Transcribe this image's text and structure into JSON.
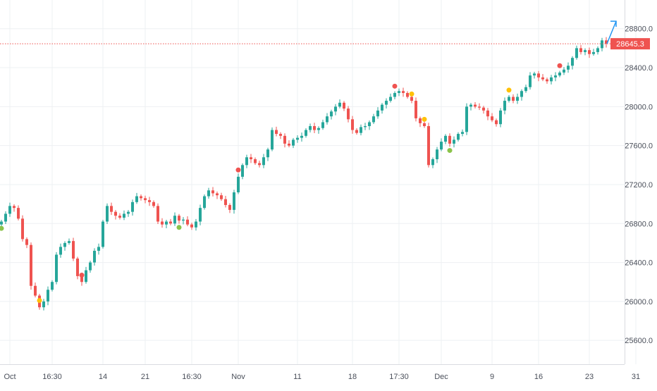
{
  "chart_data": {
    "type": "candlestick",
    "title": "",
    "xlabel": "",
    "ylabel": "",
    "ylim": [
      25500,
      28950
    ],
    "y_ticks": [
      25600,
      26000,
      26400,
      26800,
      27200,
      27600,
      28000,
      28400,
      28800
    ],
    "y_tick_labels": [
      "25600.0",
      "26000.0",
      "26400.0",
      "26800.0",
      "27200.0",
      "27600.0",
      "28000.0",
      "28400.0",
      "28800.0"
    ],
    "x_tick_labels": [
      "Oct",
      "16:30",
      "14",
      "21",
      "16:30",
      "Nov",
      "11",
      "18",
      "17:30",
      "Dec",
      "9",
      "16",
      "23",
      "31"
    ],
    "x_tick_index": [
      2,
      12,
      24,
      34,
      45,
      56,
      70,
      83,
      94,
      104,
      116,
      127,
      139,
      150
    ],
    "grid": true,
    "current_price": 28645.3,
    "current_price_label": "28645.3",
    "colors": {
      "up": "#26a69a",
      "down": "#ef5350",
      "price_line": "#ef5350",
      "arrow": "#2196f3",
      "grid": "#eef0f3",
      "axis_text": "#4a4f5a"
    },
    "series": [
      {
        "close": [
          26820,
          26900,
          26980,
          26960,
          26850,
          26640,
          26580,
          26160,
          26060,
          25940,
          26000,
          26120,
          26200,
          26480,
          26560,
          26600,
          26620,
          26440,
          26260,
          26200,
          26320,
          26400,
          26520,
          26560,
          26820,
          26980,
          26920,
          26880,
          26860,
          26900,
          26920,
          27020,
          27080,
          27060,
          27040,
          27020,
          26980,
          26820,
          26790,
          26820,
          26800,
          26880,
          26830,
          26840,
          26790,
          26760,
          26820,
          26960,
          27080,
          27140,
          27110,
          27090,
          27050,
          26990,
          26940,
          27120,
          27280,
          27400,
          27480,
          27460,
          27420,
          27400,
          27480,
          27560,
          27760,
          27720,
          27700,
          27620,
          27600,
          27660,
          27680,
          27700,
          27760,
          27800,
          27760,
          27780,
          27840,
          27900,
          27950,
          28000,
          28040,
          27980,
          27870,
          27760,
          27730,
          27790,
          27800,
          27840,
          27900,
          27960,
          28020,
          28060,
          28100,
          28140,
          28160,
          28140,
          28100,
          28060,
          27880,
          27830,
          27800,
          27400,
          27460,
          27560,
          27640,
          27700,
          27620,
          27660,
          27720,
          27740,
          28000,
          28020,
          28000,
          27990,
          27960,
          27900,
          27860,
          27820,
          27960,
          28060,
          28100,
          28060,
          28100,
          28160,
          28200,
          28320,
          28340,
          28300,
          28280,
          28260,
          28300,
          28320,
          28350,
          28380,
          28420,
          28500,
          28600,
          28560,
          28580,
          28540,
          28560,
          28600,
          28680,
          28645.3
        ]
      }
    ]
  }
}
